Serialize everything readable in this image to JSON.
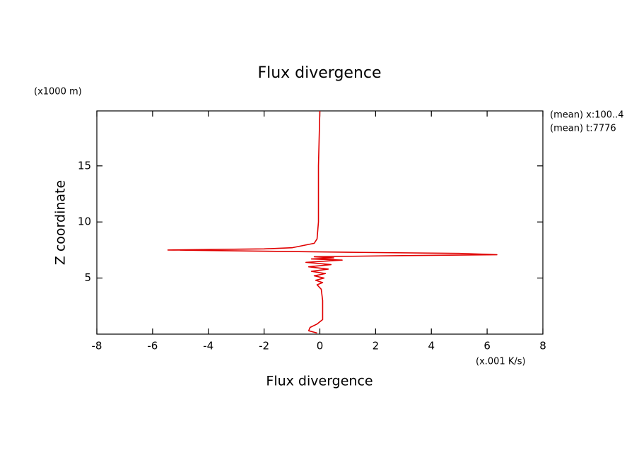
{
  "chart_data": {
    "type": "line",
    "title": "Flux divergence",
    "x_label": "Flux divergence",
    "y_label": "Z coordinate",
    "x_unit": "(x.001 K/s)",
    "y_unit": "(x1000 m)",
    "notes": [
      "(mean) x:100..4",
      "(mean) t:7776"
    ],
    "xlim": [
      -8,
      8
    ],
    "xticks": [
      -8,
      -6,
      -4,
      -2,
      0,
      2,
      4,
      6,
      8
    ],
    "ylim": [
      0,
      19.9
    ],
    "yticks": [
      5,
      10,
      15
    ],
    "y": [
      0.1,
      0.3,
      0.6,
      0.9,
      1.1,
      1.3,
      2,
      3,
      4,
      4.4,
      4.6,
      4.8,
      5.0,
      5.2,
      5.4,
      5.6,
      5.8,
      6.0,
      6.2,
      6.4,
      6.6,
      6.7,
      6.8,
      6.9,
      7.0,
      7.08,
      7.2,
      7.3,
      7.35,
      7.5,
      7.6,
      7.7,
      8.1,
      8.5,
      10,
      15,
      19.9
    ],
    "series": [
      {
        "name": "Flux divergence",
        "color": "#e00000",
        "values": [
          -0.1,
          -0.4,
          -0.35,
          -0.1,
          0.0,
          0.1,
          0.1,
          0.1,
          0.05,
          -0.1,
          0.1,
          -0.15,
          0.15,
          -0.2,
          0.2,
          -0.3,
          0.3,
          -0.4,
          0.4,
          -0.5,
          0.8,
          -0.3,
          0.5,
          -0.2,
          3.0,
          6.35,
          5.0,
          1.0,
          -0.5,
          -5.45,
          -2.0,
          -1.0,
          -0.2,
          -0.1,
          -0.05,
          -0.05,
          0.0
        ]
      }
    ]
  }
}
